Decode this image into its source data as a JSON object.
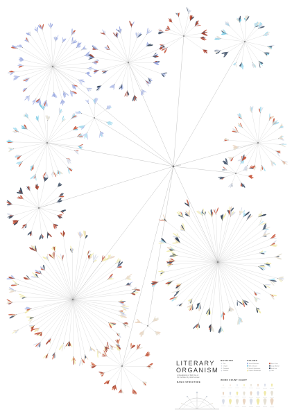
{
  "poster": {
    "title_line1": "LITERARY",
    "title_line2": "ORGANISM",
    "subtitle_line1": "A Visualization of Part One of",
    "subtitle_line2": "On the Road, by Jack Kerouac",
    "node_label": "Chapter 3",
    "palette": [
      "#9aa9e0",
      "#b3bfe8",
      "#c8d0ef",
      "#a8ddee",
      "#6fc6e2",
      "#d8dde8",
      "#e6e1d4",
      "#ead6c3",
      "#f0e9a8",
      "#f3eebe",
      "#c8573c",
      "#a23d2b",
      "#dd8c6c",
      "#495a70",
      "#2f3e52",
      "#cfd5dd"
    ],
    "legend": {
      "structure_heading": "BASIC STRUCTURE",
      "notation_heading": "NOTATION",
      "colors_heading": "COLORS",
      "wordcount_heading": "WORD COUNT CHART",
      "notation_items": [
        "Part",
        "Chapter",
        "Paragraph",
        "Sentence"
      ],
      "color_items": [
        {
          "label": "Travel & Movement",
          "color": "#9aa9e0"
        },
        {
          "label": "Work & Survival",
          "color": "#6fc6e2"
        },
        {
          "label": "Nature & Environment",
          "color": "#e6e1d4"
        },
        {
          "label": "People & Relationships",
          "color": "#f0e9a8"
        },
        {
          "label": "Music & Jazz",
          "color": "#c8573c"
        },
        {
          "label": "Drugs & Alcohol",
          "color": "#495a70"
        },
        {
          "label": "Sex & Love",
          "color": "#2f3e52"
        },
        {
          "label": "Other",
          "color": "#cfd5dd"
        }
      ]
    }
  }
}
